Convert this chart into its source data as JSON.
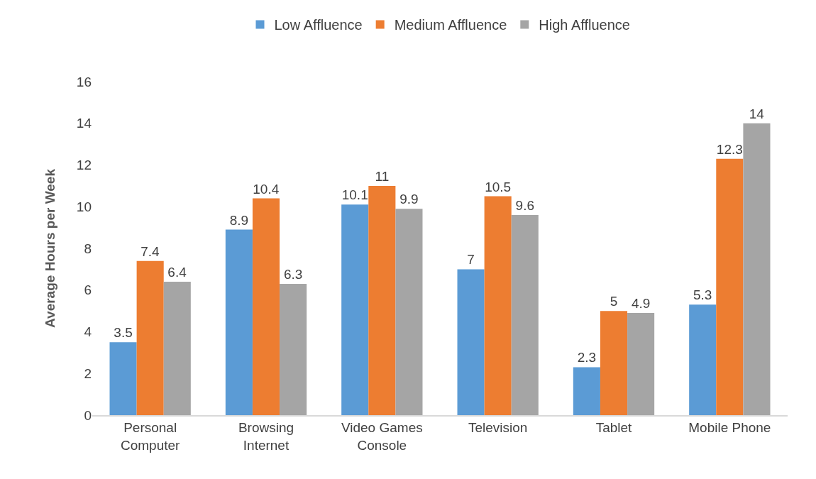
{
  "chart_data": {
    "type": "bar",
    "ylabel": "Average Hours per Week",
    "categories": [
      "Personal Computer",
      "Browsing Internet",
      "Video Games Console",
      "Television",
      "Tablet",
      "Mobile Phone"
    ],
    "series": [
      {
        "name": "Low Affluence",
        "color": "#5b9bd5",
        "values": [
          3.5,
          8.9,
          10.1,
          7,
          2.3,
          5.3
        ]
      },
      {
        "name": "Medium Affluence",
        "color": "#ed7d31",
        "values": [
          7.4,
          10.4,
          11,
          10.5,
          5,
          12.3
        ]
      },
      {
        "name": "High Affluence",
        "color": "#a5a5a5",
        "values": [
          6.4,
          6.3,
          9.9,
          9.6,
          4.9,
          14
        ]
      }
    ],
    "ylim": [
      0,
      16
    ],
    "yticks": [
      0,
      2,
      4,
      6,
      8,
      10,
      12,
      14,
      16
    ],
    "grid": false,
    "legend": "top",
    "data_labels": true
  }
}
